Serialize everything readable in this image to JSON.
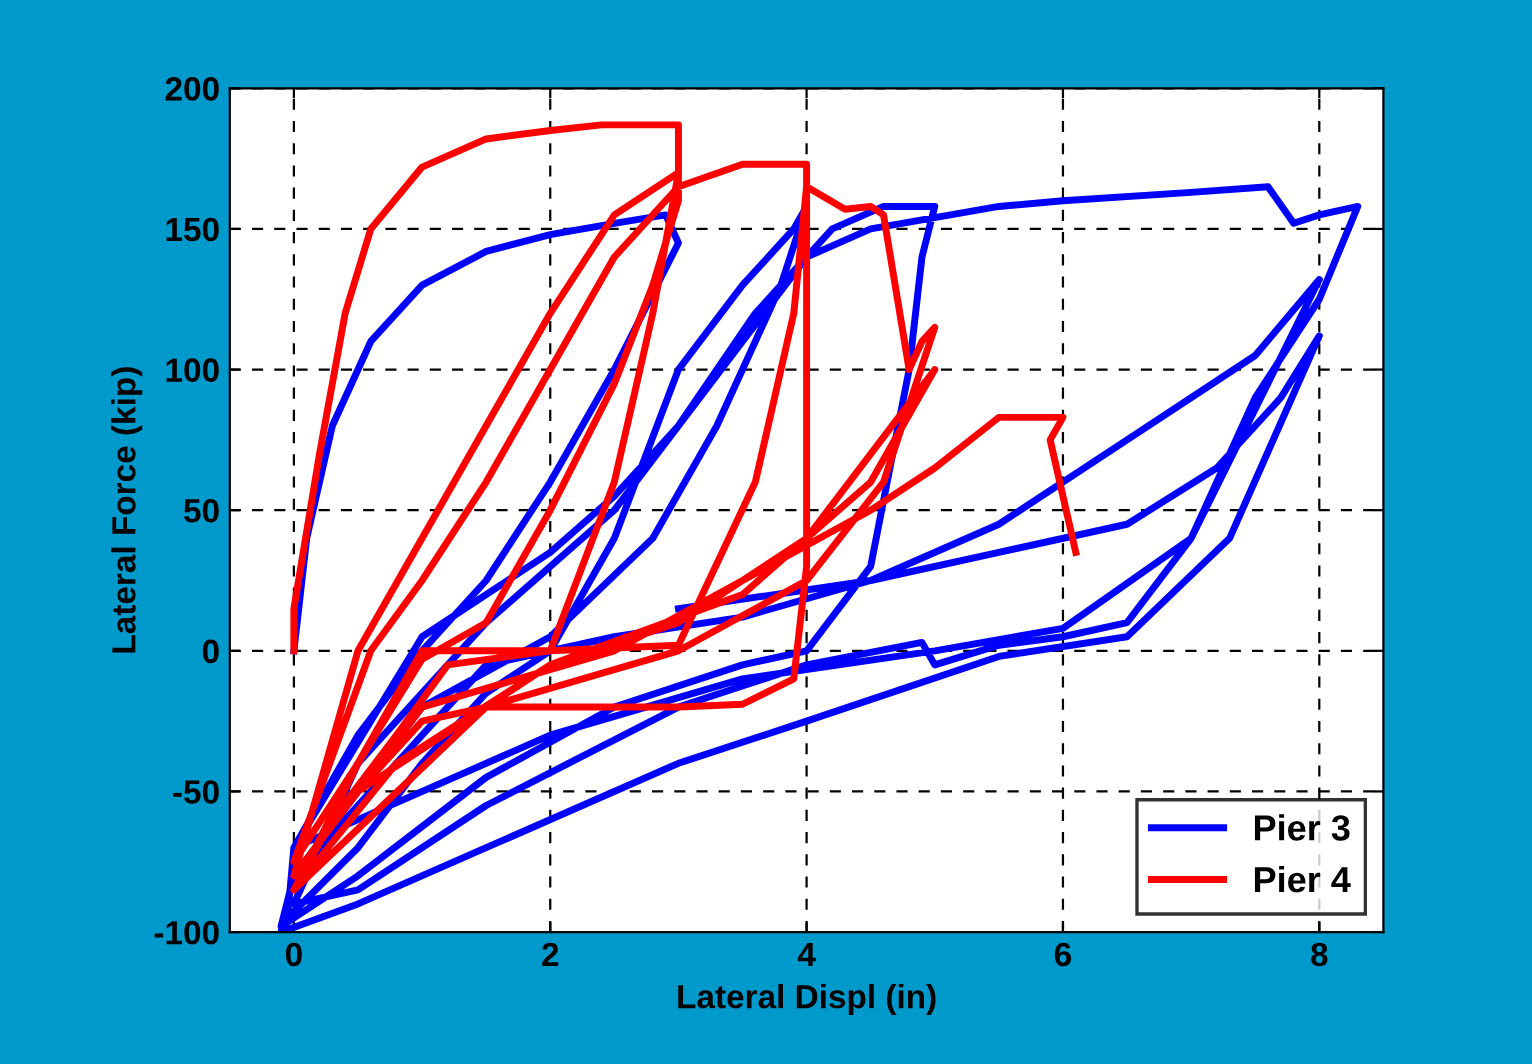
{
  "chart_data": {
    "type": "line",
    "xlabel": "Lateral Displ (in)",
    "ylabel": "Lateral Force (kip)",
    "xlim": [
      -0.5,
      8.5
    ],
    "ylim": [
      -100,
      200
    ],
    "xticks": [
      0,
      2,
      4,
      6,
      8
    ],
    "yticks": [
      -100,
      -50,
      0,
      50,
      100,
      150,
      200
    ],
    "grid": true,
    "legend": "bottom right",
    "line_style": "solid",
    "series": [
      {
        "name": "Pier 3",
        "color": "#0000ff",
        "x": [
          0,
          0.1,
          0.3,
          0.6,
          1.0,
          1.5,
          2.0,
          2.5,
          2.9,
          3.0,
          2.5,
          2.0,
          1.5,
          1.0,
          0.5,
          0,
          -0.05,
          0.5,
          1.0,
          1.5,
          2.0,
          2.5,
          3.0,
          3.5,
          3.9,
          4.0,
          3.8,
          3.3,
          2.8,
          2.0,
          1.0,
          0,
          -0.1,
          0.5,
          1.5,
          2.5,
          3.5,
          4.0,
          4.5,
          4.8,
          4.9,
          5.0,
          4.6,
          4.2,
          3.6,
          3.0,
          2.5,
          1.5,
          0.5,
          0,
          0.5,
          1.5,
          3.0,
          4.0,
          4.9,
          5.0,
          5.5,
          6.0,
          6.5,
          7.0,
          7.5,
          8.0,
          8.3,
          8.0,
          7.8,
          7.6,
          7.0,
          6.0,
          5.5,
          4.5,
          4.0,
          3.5,
          3.0,
          2.5,
          2.0,
          1.0,
          0,
          0.5,
          2.0,
          3.5,
          5.0,
          6.0,
          7.0,
          8.0,
          7.5,
          6.5,
          5.5,
          4.5,
          3.5,
          2.5,
          1.5,
          0,
          -0.1,
          0.5,
          1.5,
          3.0,
          4.0,
          5.5,
          6.5,
          7.3,
          8.0,
          7.7,
          7.2,
          6.5,
          5.5,
          4.5,
          3.0
        ],
        "values": [
          0,
          40,
          80,
          110,
          130,
          142,
          148,
          152,
          155,
          145,
          100,
          60,
          25,
          0,
          -30,
          -70,
          -95,
          -70,
          -40,
          -15,
          0,
          40,
          100,
          130,
          150,
          158,
          130,
          80,
          40,
          5,
          -20,
          -80,
          -98,
          -80,
          -45,
          -20,
          -5,
          0,
          30,
          100,
          140,
          158,
          158,
          150,
          120,
          80,
          50,
          10,
          -40,
          -90,
          -85,
          -55,
          -20,
          -5,
          3,
          -5,
          2,
          5,
          10,
          40,
          90,
          125,
          158,
          155,
          152,
          165,
          163,
          160,
          158,
          150,
          140,
          110,
          80,
          55,
          35,
          5,
          -70,
          -60,
          -30,
          -10,
          0,
          8,
          40,
          132,
          105,
          75,
          45,
          25,
          12,
          5,
          -5,
          -80,
          -100,
          -90,
          -70,
          -40,
          -25,
          -2,
          5,
          40,
          112,
          90,
          65,
          45,
          35,
          25,
          15
        ]
      },
      {
        "name": "Pier 4",
        "color": "#ff0000",
        "x": [
          0,
          0,
          0.2,
          0.4,
          0.6,
          1.0,
          1.5,
          2.0,
          2.4,
          3.0,
          3.0,
          2.8,
          2.5,
          2.0,
          1.5,
          1.0,
          0.5,
          0,
          0.3,
          0.8,
          1.2,
          2.0,
          2.5,
          2.8,
          3.0,
          2.5,
          2.0,
          1.5,
          1.0,
          0.5,
          0,
          0.5,
          1.0,
          1.5,
          2.0,
          3.0,
          3.5,
          3.9,
          4.0,
          4.0,
          4.0,
          3.5,
          3.0,
          2.5,
          2.0,
          1.5,
          1.0,
          0.6,
          0,
          0.5,
          1.0,
          2.0,
          3.0,
          3.6,
          3.9,
          4.0,
          4.3,
          4.5,
          4.6,
          4.8,
          4.9,
          5.0,
          4.6,
          4.0,
          3.0,
          1.5,
          0,
          0.8,
          2.0,
          3.5,
          4.5,
          5.0,
          4.0,
          3.0,
          2.0,
          0.5,
          0,
          1.0,
          2.5,
          3.5,
          4.5,
          5.0,
          5.5,
          6.0,
          5.9,
          6.1
        ],
        "values": [
          0,
          15,
          70,
          120,
          150,
          172,
          182,
          185,
          187,
          187,
          160,
          130,
          95,
          50,
          10,
          -3,
          -40,
          -85,
          -60,
          -30,
          -5,
          0,
          60,
          120,
          170,
          155,
          120,
          80,
          40,
          0,
          -80,
          -50,
          -25,
          -20,
          -20,
          -20,
          -19,
          -10,
          30,
          100,
          173,
          173,
          165,
          140,
          100,
          60,
          25,
          0,
          -75,
          -40,
          0,
          0,
          2,
          60,
          120,
          165,
          157,
          158,
          155,
          100,
          110,
          115,
          60,
          25,
          0,
          -20,
          -85,
          -40,
          -5,
          20,
          60,
          100,
          40,
          10,
          -5,
          -50,
          -80,
          -20,
          0,
          25,
          50,
          65,
          83,
          83,
          75,
          35
        ]
      }
    ]
  }
}
